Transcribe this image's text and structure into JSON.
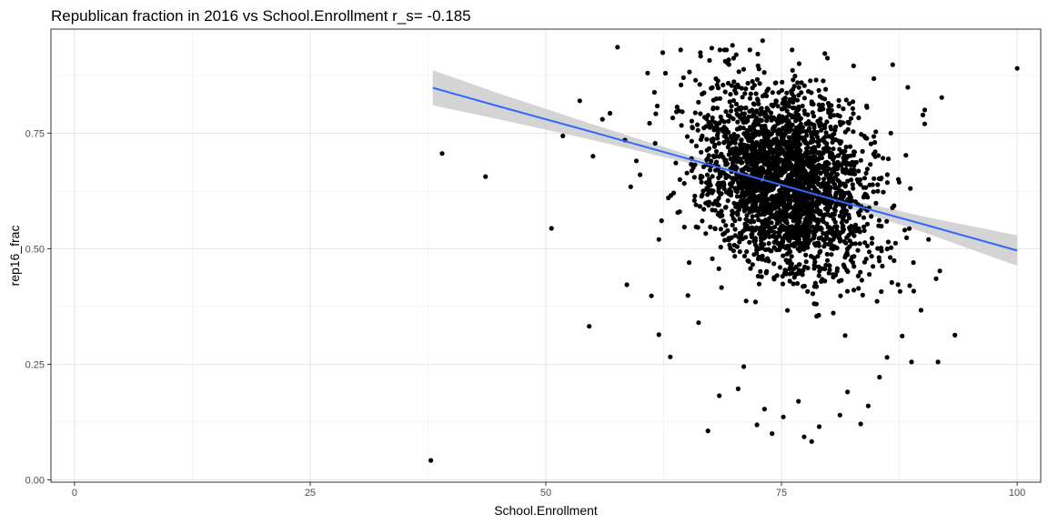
{
  "chart_data": {
    "type": "scatter",
    "title": "Republican fraction in 2016 vs School.Enrollment  r_s= -0.185",
    "xlabel": "School.Enrollment",
    "ylabel": "rep16_frac",
    "xlim": [
      -2.5,
      102.5
    ],
    "ylim": [
      -0.005,
      0.975
    ],
    "x_ticks": [
      0,
      25,
      50,
      75,
      100
    ],
    "x_tick_labels": [
      "0",
      "25",
      "50",
      "75",
      "100"
    ],
    "y_ticks": [
      0.0,
      0.25,
      0.5,
      0.75
    ],
    "y_tick_labels": [
      "0.00",
      "0.25",
      "0.50",
      "0.75"
    ],
    "x_minor": [
      12.5,
      37.5,
      62.5,
      87.5
    ],
    "y_minor": [
      0.125,
      0.375,
      0.625,
      0.875
    ],
    "grid": true,
    "legend": "none",
    "point_color": "#000000",
    "fit_line": {
      "method": "linear",
      "color": "#3366ff",
      "band_color": "#cccccc",
      "x": [
        38,
        45,
        55,
        65,
        75,
        82,
        90,
        100
      ],
      "y": [
        0.848,
        0.808,
        0.752,
        0.695,
        0.638,
        0.598,
        0.553,
        0.496
      ],
      "lower": [
        0.81,
        0.78,
        0.735,
        0.686,
        0.632,
        0.589,
        0.536,
        0.463
      ],
      "upper": [
        0.886,
        0.836,
        0.769,
        0.704,
        0.644,
        0.607,
        0.57,
        0.529
      ]
    },
    "points": [
      {
        "x": 37.8,
        "y": 0.042
      },
      {
        "x": 39.0,
        "y": 0.706
      },
      {
        "x": 43.6,
        "y": 0.656
      },
      {
        "x": 50.6,
        "y": 0.544
      },
      {
        "x": 51.8,
        "y": 0.744
      },
      {
        "x": 53.6,
        "y": 0.82
      },
      {
        "x": 54.6,
        "y": 0.332
      },
      {
        "x": 55.0,
        "y": 0.7
      },
      {
        "x": 56.0,
        "y": 0.78
      },
      {
        "x": 56.8,
        "y": 0.793
      },
      {
        "x": 57.6,
        "y": 0.936
      },
      {
        "x": 58.6,
        "y": 0.422
      },
      {
        "x": 59.0,
        "y": 0.634
      },
      {
        "x": 60.0,
        "y": 0.66
      },
      {
        "x": 60.8,
        "y": 0.88
      },
      {
        "x": 61.2,
        "y": 0.398
      },
      {
        "x": 62.0,
        "y": 0.314
      },
      {
        "x": 62.4,
        "y": 0.924
      },
      {
        "x": 63.2,
        "y": 0.266
      },
      {
        "x": 64.6,
        "y": 0.87
      },
      {
        "x": 66.4,
        "y": 0.924
      },
      {
        "x": 67.2,
        "y": 0.106
      },
      {
        "x": 67.6,
        "y": 0.934
      },
      {
        "x": 68.4,
        "y": 0.182
      },
      {
        "x": 69.8,
        "y": 0.94
      },
      {
        "x": 73.0,
        "y": 0.95
      },
      {
        "x": 77.4,
        "y": 0.093
      },
      {
        "x": 78.2,
        "y": 0.083
      },
      {
        "x": 79.6,
        "y": 0.922
      },
      {
        "x": 81.2,
        "y": 0.14
      },
      {
        "x": 84.2,
        "y": 0.16
      },
      {
        "x": 84.8,
        "y": 0.868
      },
      {
        "x": 86.8,
        "y": 0.898
      },
      {
        "x": 88.4,
        "y": 0.849
      },
      {
        "x": 88.8,
        "y": 0.255
      },
      {
        "x": 89.8,
        "y": 0.367
      },
      {
        "x": 90.2,
        "y": 0.8
      },
      {
        "x": 90.2,
        "y": 0.77
      },
      {
        "x": 90.6,
        "y": 0.52
      },
      {
        "x": 91.8,
        "y": 0.452
      },
      {
        "x": 92.0,
        "y": 0.827
      },
      {
        "x": 93.4,
        "y": 0.313
      },
      {
        "x": 91.6,
        "y": 0.255
      },
      {
        "x": 100.0,
        "y": 0.89
      },
      {
        "x": 72.4,
        "y": 0.119
      },
      {
        "x": 73.2,
        "y": 0.153
      },
      {
        "x": 74.0,
        "y": 0.1
      },
      {
        "x": 75.2,
        "y": 0.136
      },
      {
        "x": 76.8,
        "y": 0.17
      },
      {
        "x": 79.0,
        "y": 0.115
      },
      {
        "x": 82.0,
        "y": 0.19
      },
      {
        "x": 83.4,
        "y": 0.121
      },
      {
        "x": 70.4,
        "y": 0.197
      },
      {
        "x": 71.0,
        "y": 0.245
      },
      {
        "x": 66.2,
        "y": 0.34
      },
      {
        "x": 65.2,
        "y": 0.47
      },
      {
        "x": 64.2,
        "y": 0.58
      },
      {
        "x": 63.0,
        "y": 0.61
      },
      {
        "x": 62.0,
        "y": 0.52
      },
      {
        "x": 58.4,
        "y": 0.735
      },
      {
        "x": 59.6,
        "y": 0.69
      },
      {
        "x": 61.6,
        "y": 0.728
      },
      {
        "x": 86.2,
        "y": 0.265
      },
      {
        "x": 85.4,
        "y": 0.222
      },
      {
        "x": 87.8,
        "y": 0.311
      },
      {
        "x": 86.6,
        "y": 0.75
      },
      {
        "x": 87.4,
        "y": 0.65
      },
      {
        "x": 88.2,
        "y": 0.702
      },
      {
        "x": 89.0,
        "y": 0.47
      },
      {
        "x": 91.4,
        "y": 0.435
      },
      {
        "x": 88.6,
        "y": 0.42
      }
    ],
    "cloud": {
      "count": 2700,
      "x_center": 75.5,
      "x_sd": 4.3,
      "x_range": [
        61,
        90
      ],
      "y_center": 0.645,
      "y_sd": 0.125,
      "y_range": [
        0.1,
        0.93
      ],
      "slope": -0.006
    }
  }
}
